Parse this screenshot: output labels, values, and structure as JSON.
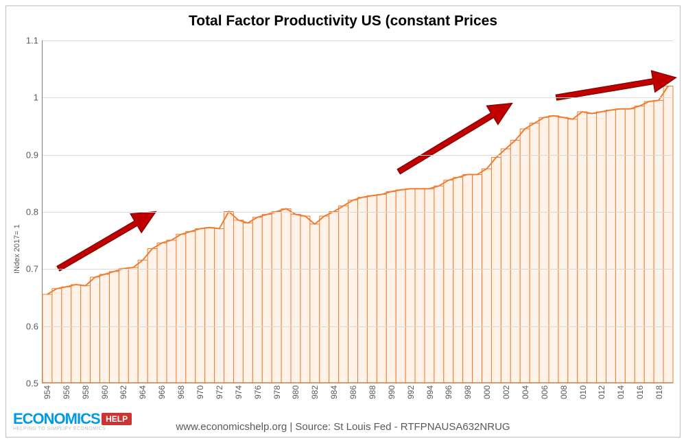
{
  "chart": {
    "title": "Total Factor Productivity US (constant Prices",
    "title_fontsize": 21,
    "ylabel": "INdex 2017= 1",
    "label_fontsize": 11,
    "caption": "www.economicshelp.org  |  Source: St Louis Fed - RTFPNAUSA632NRUG",
    "background_color": "#ffffff",
    "border_color": "#bfbfbf",
    "axis_color": "#808080",
    "grid_color": "#d9d9d9",
    "text_color": "#595959",
    "ylim": [
      0.5,
      1.1
    ],
    "ytick_step": 0.1,
    "yticks": [
      0.5,
      0.6,
      0.7,
      0.8,
      0.9,
      1.0,
      1.1
    ],
    "ytick_labels": [
      "0.5",
      "0.6",
      "0.7",
      "0.8",
      "0.9",
      "1",
      "1.1"
    ],
    "xlabels": [
      "954",
      "956",
      "958",
      "960",
      "962",
      "964",
      "966",
      "968",
      "970",
      "972",
      "974",
      "976",
      "978",
      "980",
      "982",
      "984",
      "986",
      "988",
      "990",
      "992",
      "994",
      "996",
      "998",
      "000",
      "002",
      "004",
      "006",
      "008",
      "010",
      "012",
      "014",
      "016",
      "018"
    ],
    "type": "area-bar-with-line",
    "line_color": "#ed7d31",
    "line_width": 2,
    "fill_color": "#fff2e8",
    "fill_opacity": 1,
    "bar_border_color": "#ed7d31",
    "years": [
      1954,
      1955,
      1956,
      1957,
      1958,
      1959,
      1960,
      1961,
      1962,
      1963,
      1964,
      1965,
      1966,
      1967,
      1968,
      1969,
      1970,
      1971,
      1972,
      1973,
      1974,
      1975,
      1976,
      1977,
      1978,
      1979,
      1980,
      1981,
      1982,
      1983,
      1984,
      1985,
      1986,
      1987,
      1988,
      1989,
      1990,
      1991,
      1992,
      1993,
      1994,
      1995,
      1996,
      1997,
      1998,
      1999,
      2000,
      2001,
      2002,
      2003,
      2004,
      2005,
      2006,
      2007,
      2008,
      2009,
      2010,
      2011,
      2012,
      2013,
      2014,
      2015,
      2016,
      2017,
      2018,
      2019
    ],
    "values": [
      0.655,
      0.665,
      0.668,
      0.672,
      0.67,
      0.685,
      0.69,
      0.695,
      0.7,
      0.702,
      0.715,
      0.735,
      0.745,
      0.75,
      0.76,
      0.765,
      0.77,
      0.772,
      0.77,
      0.8,
      0.785,
      0.78,
      0.79,
      0.795,
      0.8,
      0.805,
      0.795,
      0.792,
      0.778,
      0.792,
      0.8,
      0.81,
      0.82,
      0.825,
      0.828,
      0.83,
      0.835,
      0.838,
      0.84,
      0.84,
      0.84,
      0.845,
      0.855,
      0.86,
      0.865,
      0.865,
      0.875,
      0.895,
      0.91,
      0.925,
      0.945,
      0.955,
      0.965,
      0.968,
      0.965,
      0.962,
      0.975,
      0.972,
      0.975,
      0.978,
      0.98,
      0.98,
      0.985,
      0.993,
      0.995,
      1.02
    ],
    "arrows": [
      {
        "start": [
          0.025,
          0.7
        ],
        "end": [
          0.18,
          0.8
        ],
        "color": "#c00000",
        "border": "#800000",
        "shaft_width": 8,
        "head_width": 32,
        "head_len": 34
      },
      {
        "start": [
          0.565,
          0.87
        ],
        "end": [
          0.745,
          0.99
        ],
        "color": "#c00000",
        "border": "#800000",
        "shaft_width": 8,
        "head_width": 32,
        "head_len": 34
      },
      {
        "start": [
          0.815,
          1.0
        ],
        "end": [
          1.005,
          1.035
        ],
        "color": "#c00000",
        "border": "#800000",
        "shaft_width": 8,
        "head_width": 32,
        "head_len": 34
      }
    ]
  },
  "logo": {
    "text_main": "ECONOMICS",
    "text_tag": "HELP",
    "subtitle": "HELPING TO SIMPLIFY ECONOMICS",
    "main_color": "#0099e6",
    "tag_bg": "#cc3333",
    "tag_color": "#ffffff",
    "sub_color": "#bfbfbf"
  }
}
